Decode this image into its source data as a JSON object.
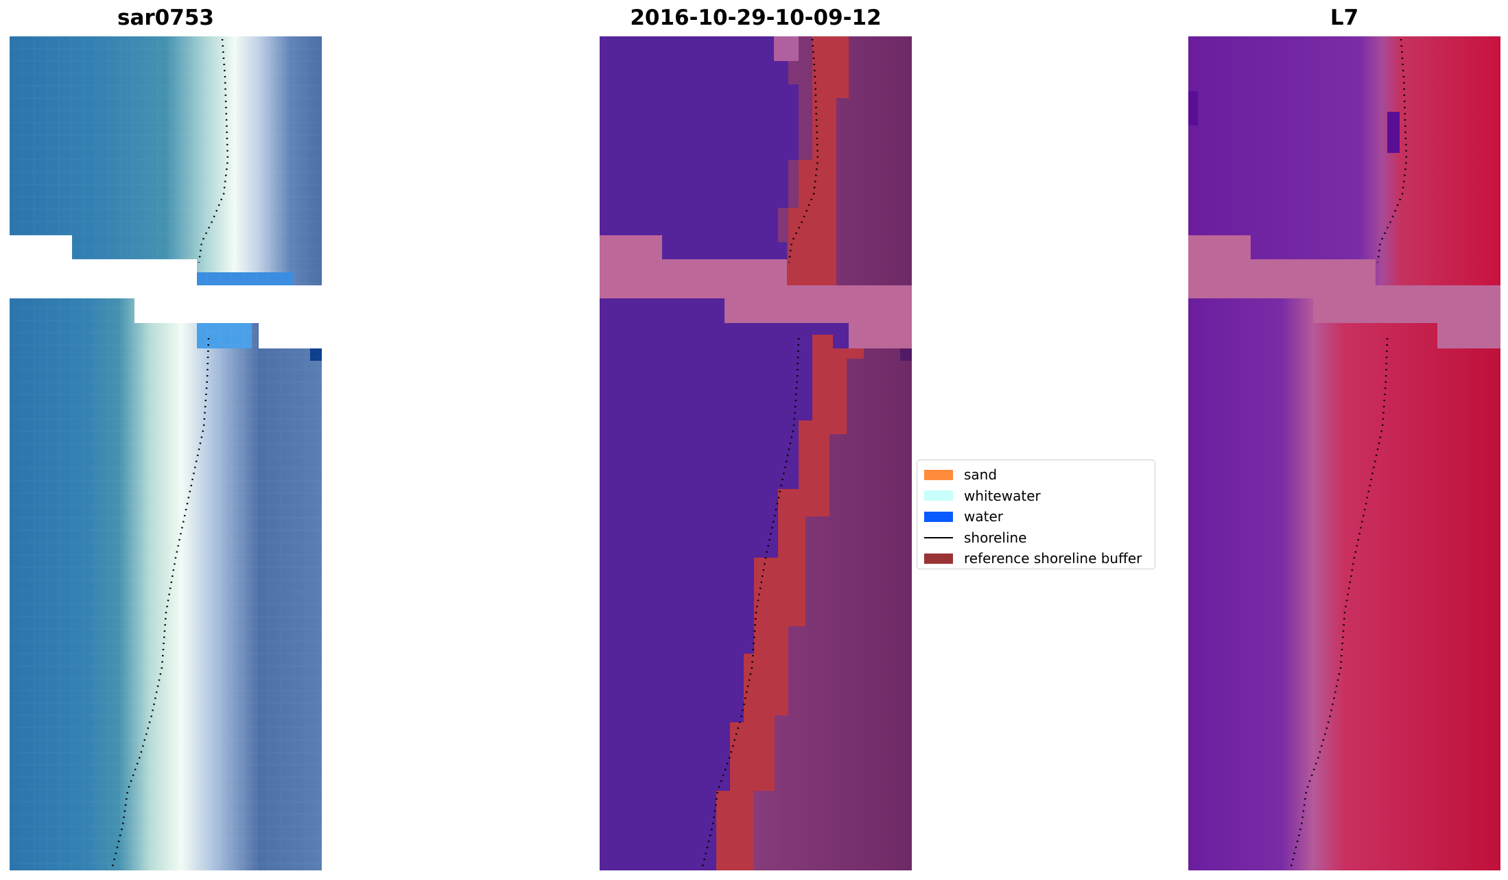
{
  "panels": [
    {
      "title": "sar0753"
    },
    {
      "title": "2016-10-29-10-09-12"
    },
    {
      "title": "L7"
    }
  ],
  "legend": {
    "items": [
      {
        "label": "sand",
        "type": "patch",
        "color": "#ff8c3c"
      },
      {
        "label": "whitewater",
        "type": "patch",
        "color": "#c8fffa"
      },
      {
        "label": "water",
        "type": "patch",
        "color": "#0a5aff"
      },
      {
        "label": "shoreline",
        "type": "line",
        "color": "#000000"
      },
      {
        "label": "reference shoreline buffer",
        "type": "patch",
        "color": "#9a3336"
      }
    ]
  }
}
